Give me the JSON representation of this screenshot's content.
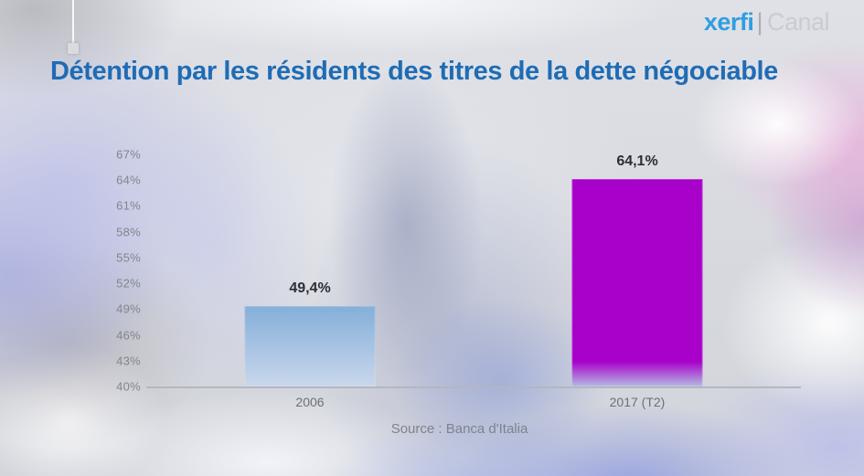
{
  "logo": {
    "brand": "xerfi",
    "separator": "|",
    "suffix": "Canal"
  },
  "title": "Détention par les résidents des titres de la dette négociable",
  "source": "Source : Banca d'Italia",
  "chart_data": {
    "type": "bar",
    "title": "Détention par les résidents des titres de la dette négociable",
    "categories": [
      "2006",
      "2017 (T2)"
    ],
    "values": [
      49.4,
      64.1
    ],
    "value_labels": [
      "49,4%",
      "64,1%"
    ],
    "unit": "%",
    "ylim": [
      40,
      67
    ],
    "y_tick_step": 3,
    "y_ticks": [
      "67%",
      "64%",
      "61%",
      "58%",
      "55%",
      "52%",
      "49%",
      "46%",
      "43%",
      "40%"
    ],
    "grid": false,
    "legend": false,
    "source": "Source : Banca d'Italia",
    "bar_styles": [
      {
        "color_top": "#88b1da",
        "color_bottom": "#c9d7ec",
        "solid_until_pct": 6
      },
      {
        "color_top": "#a801c9",
        "color_bottom": "#b3bbe2",
        "solid_until_pct": 88
      }
    ]
  },
  "colors": {
    "title": "#1f6cb5",
    "logo_brand": "#2f9de2",
    "logo_separator": "#a9aeb6",
    "logo_suffix": "#c8ccd3",
    "axis_line": "#b4b7bd",
    "tick_label": "#81858e",
    "category_label": "#6b7079",
    "value_label": "#2d2e33",
    "source_text": "#7e838b"
  }
}
